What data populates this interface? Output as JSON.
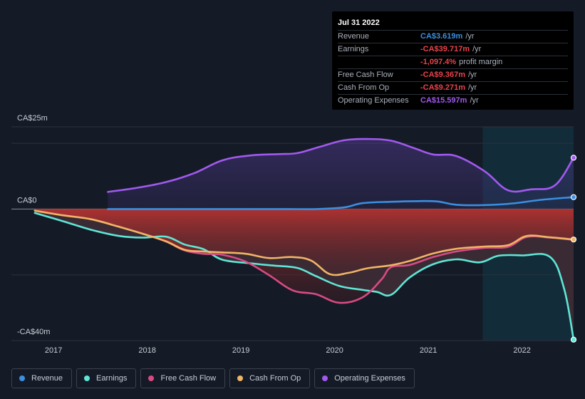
{
  "tooltip": {
    "date": "Jul 31 2022",
    "rows": [
      {
        "label": "Revenue",
        "value": "CA$3.619m",
        "unit": "/yr",
        "color": "#3b8fe0"
      },
      {
        "label": "Earnings",
        "value": "-CA$39.717m",
        "unit": "/yr",
        "color": "#e9434c"
      },
      {
        "label": "",
        "value": "-1,097.4%",
        "unit": "profit margin",
        "color": "#e9434c"
      },
      {
        "label": "Free Cash Flow",
        "value": "-CA$9.367m",
        "unit": "/yr",
        "color": "#e9434c"
      },
      {
        "label": "Cash From Op",
        "value": "-CA$9.271m",
        "unit": "/yr",
        "color": "#e9434c"
      },
      {
        "label": "Operating Expenses",
        "value": "CA$15.597m",
        "unit": "/yr",
        "color": "#a259f0"
      }
    ]
  },
  "legend": [
    {
      "label": "Revenue",
      "color": "#3b8fe0"
    },
    {
      "label": "Earnings",
      "color": "#5ee6d6"
    },
    {
      "label": "Free Cash Flow",
      "color": "#d94a83"
    },
    {
      "label": "Cash From Op",
      "color": "#f0b466"
    },
    {
      "label": "Operating Expenses",
      "color": "#a259f0"
    }
  ],
  "chart_data": {
    "type": "line",
    "title": "",
    "xlabel": "",
    "ylabel": "",
    "ylim": [
      -40,
      25
    ],
    "xlim": [
      2016.55,
      2022.55
    ],
    "y_tick_labels": [
      "CA$25m",
      "CA$0",
      "-CA$40m"
    ],
    "y_tick_values": [
      25,
      0,
      -40
    ],
    "x_tick_labels": [
      "2017",
      "2018",
      "2019",
      "2020",
      "2021",
      "2022"
    ],
    "x_tick_values": [
      2017,
      2018,
      2019,
      2020,
      2021,
      2022
    ],
    "highlight_start": 2021.58,
    "series": [
      {
        "name": "Revenue",
        "color": "#3b8fe0",
        "x": [
          2017.58,
          2018.0,
          2018.5,
          2019.0,
          2019.5,
          2019.8,
          2020.1,
          2020.3,
          2020.6,
          2020.9,
          2021.1,
          2021.3,
          2021.6,
          2021.9,
          2022.2,
          2022.55
        ],
        "y": [
          0,
          0,
          0,
          0,
          0,
          0,
          0.5,
          1.8,
          2.2,
          2.4,
          2.3,
          1.3,
          1.2,
          1.7,
          2.8,
          3.619
        ]
      },
      {
        "name": "Operating Expenses",
        "color": "#a259f0",
        "x": [
          2017.58,
          2017.9,
          2018.2,
          2018.5,
          2018.8,
          2019.1,
          2019.4,
          2019.6,
          2019.85,
          2020.1,
          2020.35,
          2020.6,
          2020.85,
          2021.05,
          2021.3,
          2021.6,
          2021.85,
          2022.1,
          2022.35,
          2022.55
        ],
        "y": [
          5.2,
          6.5,
          8.2,
          10.9,
          14.8,
          16.3,
          16.7,
          17.0,
          19.0,
          20.9,
          21.3,
          20.8,
          18.5,
          16.6,
          16.1,
          11.5,
          5.7,
          6.0,
          7.2,
          15.597
        ]
      },
      {
        "name": "Earnings",
        "color": "#5ee6d6",
        "x": [
          2016.8,
          2017.1,
          2017.4,
          2017.7,
          2017.95,
          2018.2,
          2018.4,
          2018.6,
          2018.8,
          2019.1,
          2019.35,
          2019.6,
          2019.8,
          2020.05,
          2020.3,
          2020.45,
          2020.6,
          2020.8,
          2021.05,
          2021.3,
          2021.55,
          2021.75,
          2022.0,
          2022.3,
          2022.45,
          2022.55
        ],
        "y": [
          -1.2,
          -3.7,
          -6.3,
          -8.2,
          -8.7,
          -8.4,
          -10.8,
          -12.2,
          -15.4,
          -16.5,
          -17.2,
          -17.9,
          -20.4,
          -23.4,
          -24.6,
          -25.2,
          -26.1,
          -20.8,
          -16.8,
          -15.3,
          -16.2,
          -14.2,
          -14.1,
          -14.6,
          -24.4,
          -39.717
        ]
      },
      {
        "name": "Free Cash Flow",
        "color": "#d94a83",
        "x": [
          2016.8,
          2017.1,
          2017.4,
          2017.7,
          2017.95,
          2018.2,
          2018.4,
          2018.6,
          2018.8,
          2019.05,
          2019.3,
          2019.55,
          2019.8,
          2020.05,
          2020.3,
          2020.5,
          2020.6,
          2020.8,
          2021.05,
          2021.3,
          2021.6,
          2021.85,
          2022.05,
          2022.3,
          2022.55
        ],
        "y": [
          -0.5,
          -1.9,
          -3.1,
          -5.4,
          -7.5,
          -9.9,
          -12.6,
          -13.6,
          -13.9,
          -16.0,
          -20.1,
          -24.7,
          -25.9,
          -28.5,
          -26.8,
          -21.4,
          -17.7,
          -17.0,
          -14.6,
          -12.9,
          -11.8,
          -11.5,
          -8.5,
          -8.7,
          -9.367
        ]
      },
      {
        "name": "Cash From Op",
        "color": "#f0b466",
        "x": [
          2016.8,
          2017.1,
          2017.4,
          2017.7,
          2017.95,
          2018.2,
          2018.4,
          2018.6,
          2018.8,
          2019.05,
          2019.3,
          2019.55,
          2019.75,
          2019.95,
          2020.15,
          2020.35,
          2020.6,
          2020.8,
          2021.05,
          2021.3,
          2021.6,
          2021.85,
          2022.05,
          2022.3,
          2022.55
        ],
        "y": [
          -0.5,
          -1.9,
          -3.1,
          -5.4,
          -7.5,
          -9.8,
          -12.4,
          -12.9,
          -13.2,
          -13.6,
          -14.9,
          -14.6,
          -15.7,
          -19.8,
          -19.4,
          -18.0,
          -17.1,
          -15.8,
          -13.5,
          -12.1,
          -11.4,
          -11.0,
          -8.2,
          -8.6,
          -9.271
        ]
      }
    ]
  }
}
